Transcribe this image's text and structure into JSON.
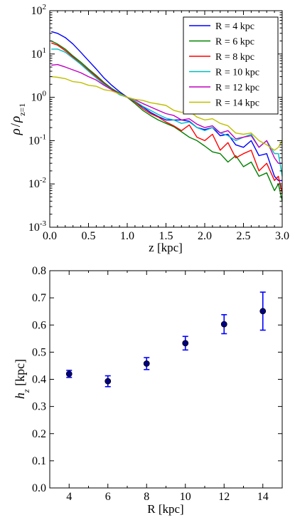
{
  "chart_data": [
    {
      "type": "line",
      "xlabel": "z [kpc]",
      "ylabel": "ρ / ρz=1",
      "ylabel_main": "ρ",
      "ylabel_sep": "/",
      "ylabel_den": "ρ",
      "ylabel_sub": "z=1",
      "xlim": [
        0.0,
        3.0
      ],
      "ylim": [
        0.001,
        100
      ],
      "yscale": "log",
      "xticks": [
        "0.0",
        "0.5",
        "1.0",
        "1.5",
        "2.0",
        "2.5",
        "3.0"
      ],
      "yticks": [
        {
          "mant": "10",
          "exp": "-3"
        },
        {
          "mant": "10",
          "exp": "-2"
        },
        {
          "mant": "10",
          "exp": "-1"
        },
        {
          "mant": "10",
          "exp": "0"
        },
        {
          "mant": "10",
          "exp": "1"
        },
        {
          "mant": "10",
          "exp": "2"
        }
      ],
      "legend_position": "top-right",
      "series": [
        {
          "name": "R = 4 kpc",
          "color": "#0000ff",
          "x": [
            0.02,
            0.1,
            0.2,
            0.3,
            0.4,
            0.5,
            0.6,
            0.7,
            0.8,
            0.9,
            1.0,
            1.1,
            1.2,
            1.3,
            1.4,
            1.5,
            1.6,
            1.7,
            1.8,
            1.9,
            2.0,
            2.1,
            2.2,
            2.3,
            2.4,
            2.5,
            2.6,
            2.7,
            2.8,
            2.9,
            2.95,
            3.0
          ],
          "y": [
            33,
            30,
            24,
            17,
            11,
            7,
            4.5,
            2.8,
            1.9,
            1.35,
            1.0,
            0.78,
            0.6,
            0.45,
            0.36,
            0.3,
            0.3,
            0.3,
            0.28,
            0.2,
            0.18,
            0.2,
            0.13,
            0.14,
            0.08,
            0.07,
            0.1,
            0.045,
            0.05,
            0.015,
            0.012,
            0.012
          ]
        },
        {
          "name": "R = 6 kpc",
          "color": "#008000",
          "x": [
            0.02,
            0.1,
            0.2,
            0.3,
            0.4,
            0.5,
            0.6,
            0.7,
            0.8,
            0.9,
            1.0,
            1.1,
            1.2,
            1.3,
            1.4,
            1.5,
            1.6,
            1.7,
            1.8,
            1.9,
            2.0,
            2.1,
            2.2,
            2.3,
            2.4,
            2.5,
            2.6,
            2.7,
            2.8,
            2.9,
            2.95,
            3.0
          ],
          "y": [
            20,
            17,
            13,
            9,
            6.5,
            4.5,
            3.2,
            2.2,
            1.6,
            1.25,
            1.0,
            0.72,
            0.5,
            0.38,
            0.3,
            0.25,
            0.21,
            0.16,
            0.12,
            0.1,
            0.075,
            0.055,
            0.05,
            0.032,
            0.045,
            0.025,
            0.032,
            0.015,
            0.018,
            0.007,
            0.01,
            0.004
          ]
        },
        {
          "name": "R = 8 kpc",
          "color": "#ff0000",
          "x": [
            0.02,
            0.1,
            0.2,
            0.3,
            0.4,
            0.5,
            0.6,
            0.7,
            0.8,
            0.9,
            1.0,
            1.1,
            1.2,
            1.3,
            1.4,
            1.5,
            1.6,
            1.7,
            1.8,
            1.9,
            2.0,
            2.1,
            2.2,
            2.3,
            2.4,
            2.5,
            2.6,
            2.7,
            2.8,
            2.9,
            2.95,
            3.0
          ],
          "y": [
            18,
            16,
            12,
            8.5,
            6,
            4.2,
            3,
            2.1,
            1.5,
            1.2,
            1.0,
            0.78,
            0.55,
            0.42,
            0.35,
            0.27,
            0.22,
            0.17,
            0.23,
            0.12,
            0.1,
            0.14,
            0.06,
            0.09,
            0.04,
            0.05,
            0.06,
            0.02,
            0.03,
            0.012,
            0.015,
            0.006
          ]
        },
        {
          "name": "R = 10 kpc",
          "color": "#00bfbf",
          "x": [
            0.02,
            0.1,
            0.2,
            0.3,
            0.4,
            0.5,
            0.6,
            0.7,
            0.8,
            0.9,
            1.0,
            1.1,
            1.2,
            1.3,
            1.4,
            1.5,
            1.6,
            1.7,
            1.8,
            1.9,
            2.0,
            2.1,
            2.2,
            2.3,
            2.4,
            2.5,
            2.6,
            2.7,
            2.8,
            2.9,
            2.95,
            3.0
          ],
          "y": [
            13,
            13,
            11,
            8,
            5.8,
            4,
            2.8,
            2,
            1.5,
            1.15,
            1.0,
            0.82,
            0.62,
            0.5,
            0.4,
            0.33,
            0.3,
            0.25,
            0.27,
            0.2,
            0.17,
            0.2,
            0.15,
            0.13,
            0.1,
            0.12,
            0.14,
            0.07,
            0.1,
            0.05,
            0.05,
            0.015
          ]
        },
        {
          "name": "R = 12 kpc",
          "color": "#bf00bf",
          "x": [
            0.02,
            0.1,
            0.2,
            0.3,
            0.4,
            0.5,
            0.6,
            0.7,
            0.8,
            0.9,
            1.0,
            1.1,
            1.2,
            1.3,
            1.4,
            1.5,
            1.6,
            1.7,
            1.8,
            1.9,
            2.0,
            2.1,
            2.2,
            2.3,
            2.4,
            2.5,
            2.6,
            2.7,
            2.8,
            2.9,
            2.95,
            3.0
          ],
          "y": [
            5.5,
            5.7,
            5,
            4.3,
            3.7,
            3,
            2.5,
            1.9,
            1.5,
            1.2,
            1.0,
            0.88,
            0.72,
            0.6,
            0.5,
            0.42,
            0.38,
            0.3,
            0.32,
            0.24,
            0.2,
            0.22,
            0.15,
            0.17,
            0.11,
            0.12,
            0.13,
            0.07,
            0.1,
            0.04,
            0.03,
            0.03
          ]
        },
        {
          "name": "R = 14 kpc",
          "color": "#bfbf00",
          "x": [
            0.02,
            0.1,
            0.2,
            0.3,
            0.4,
            0.5,
            0.6,
            0.7,
            0.8,
            0.9,
            1.0,
            1.1,
            1.2,
            1.3,
            1.4,
            1.5,
            1.6,
            1.7,
            1.8,
            1.9,
            2.0,
            2.1,
            2.2,
            2.3,
            2.4,
            2.5,
            2.6,
            2.7,
            2.8,
            2.9,
            2.95,
            3.0
          ],
          "y": [
            3,
            2.9,
            2.7,
            2.3,
            2.2,
            1.9,
            1.8,
            1.5,
            1.4,
            1.2,
            1.0,
            0.9,
            0.85,
            0.75,
            0.7,
            0.65,
            0.5,
            0.45,
            0.48,
            0.35,
            0.3,
            0.32,
            0.25,
            0.22,
            0.15,
            0.14,
            0.15,
            0.1,
            0.08,
            0.06,
            0.07,
            0.1
          ]
        }
      ]
    },
    {
      "type": "scatter",
      "xlabel": "R [kpc]",
      "ylabel": "hz [kpc]",
      "ylabel_main": "h",
      "ylabel_sub": "z",
      "ylabel_unit": " [kpc]",
      "xlim": [
        3,
        15
      ],
      "ylim": [
        0.0,
        0.8
      ],
      "xticks": [
        "4",
        "6",
        "8",
        "10",
        "12",
        "14"
      ],
      "yticks": [
        "0.0",
        "0.1",
        "0.2",
        "0.3",
        "0.4",
        "0.5",
        "0.6",
        "0.7",
        "0.8"
      ],
      "marker_color": "#000080",
      "errorbar_color": "#0000ff",
      "points": [
        {
          "x": 4,
          "y": 0.42,
          "err": 0.013
        },
        {
          "x": 6,
          "y": 0.393,
          "err": 0.02
        },
        {
          "x": 8,
          "y": 0.458,
          "err": 0.022
        },
        {
          "x": 10,
          "y": 0.533,
          "err": 0.025
        },
        {
          "x": 12,
          "y": 0.603,
          "err": 0.035
        },
        {
          "x": 14,
          "y": 0.651,
          "err": 0.07
        }
      ]
    }
  ]
}
